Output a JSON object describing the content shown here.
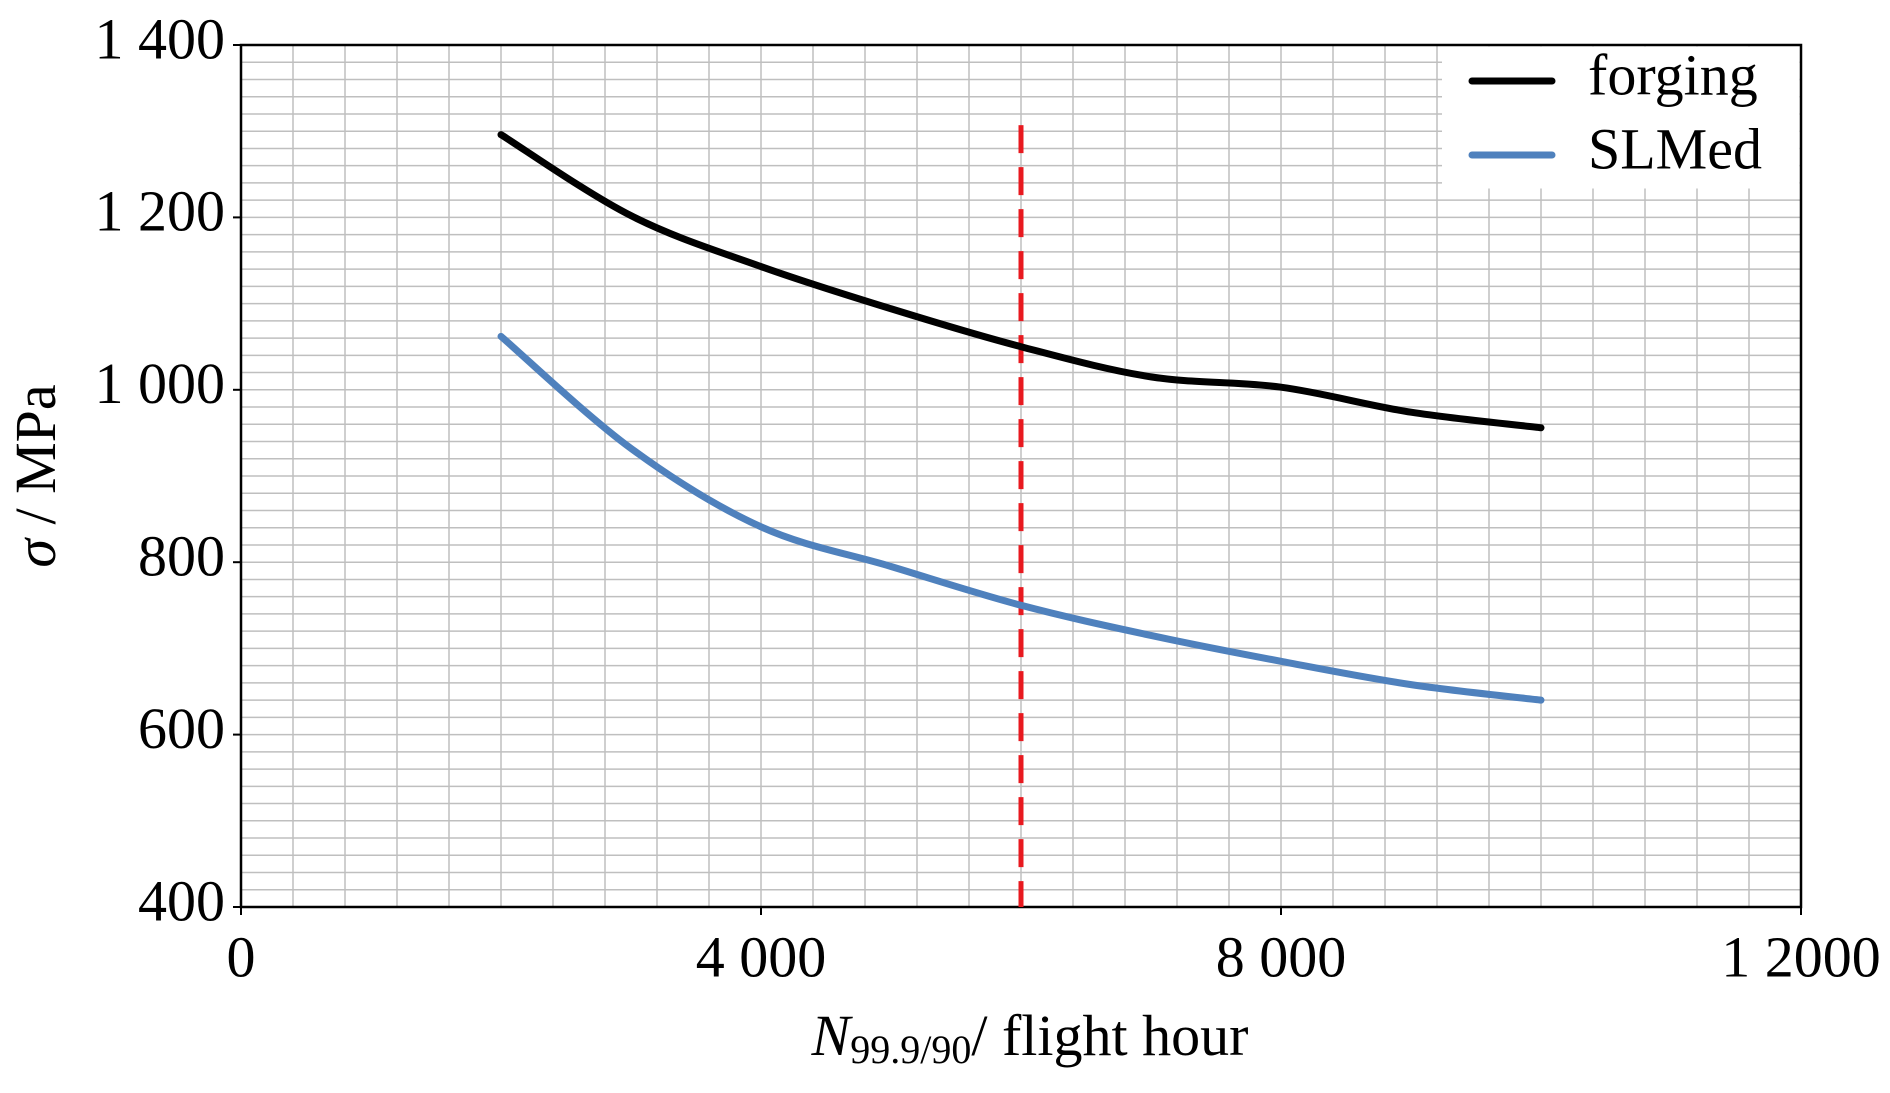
{
  "chart_data": {
    "type": "line",
    "x": [
      2000,
      3000,
      4000,
      5000,
      6000,
      7000,
      8000,
      9000,
      10000
    ],
    "series": [
      {
        "name": "forging",
        "color": "#000000",
        "values": [
          1296,
          1202,
          1143,
          1094,
          1050,
          1015,
          1003,
          974,
          956
        ]
      },
      {
        "name": "SLMed",
        "color": "#4f81bd",
        "values": [
          1062,
          932,
          841,
          795,
          750,
          715,
          685,
          658,
          640
        ]
      }
    ],
    "xlim": [
      0,
      12000
    ],
    "xticks": [
      0,
      {
        "value": 4000,
        "label": "4 000"
      },
      {
        "value": 8000,
        "label": "8 000"
      },
      {
        "value": 12000,
        "label": "1 2000"
      }
    ],
    "ylim": [
      400,
      1400
    ],
    "yticks": [
      400,
      600,
      800,
      {
        "value": 1000,
        "label": "1 000"
      },
      {
        "value": 1200,
        "label": "1 200"
      },
      {
        "value": 1400,
        "label": "1 400"
      }
    ],
    "grid": true,
    "minor_grid_step": {
      "x": 400,
      "y": 20
    },
    "xlabel": {
      "symbol": "N",
      "subscript": "99.9/90",
      "unit": "/ flight hour"
    },
    "ylabel": {
      "symbol": "σ",
      "unit": " / MPa"
    },
    "reference_line": {
      "x": 6000,
      "ytop": 1307,
      "color": "#e8191f"
    },
    "legend": "upper right"
  }
}
